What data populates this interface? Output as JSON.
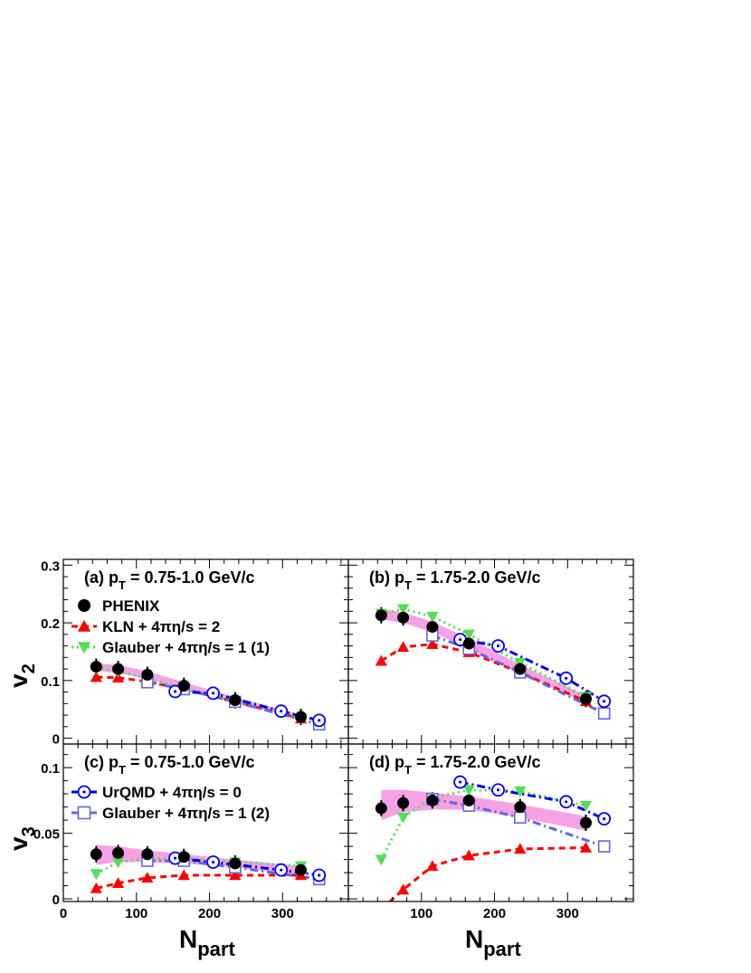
{
  "chart_data": [
    {
      "panel": "a",
      "type": "scatter",
      "title": "(a) p_T = 0.75-1.0 GeV/c",
      "title_parts": {
        "prefix": "(a) p",
        "sub": "T",
        "suffix": " = 0.75-1.0 GeV/c"
      },
      "observable": "v2",
      "xlim": [
        0,
        390
      ],
      "ylim": [
        -0.01,
        0.31
      ],
      "band": {
        "name": "PHENIX systematic",
        "color": "#ee44cc",
        "x": [
          45,
          75,
          115,
          165,
          235,
          325
        ],
        "lo": [
          0.117,
          0.113,
          0.103,
          0.084,
          0.062,
          0.034
        ],
        "hi": [
          0.13,
          0.127,
          0.116,
          0.097,
          0.071,
          0.041
        ]
      },
      "series": [
        {
          "name": "PHENIX",
          "key": "phenix",
          "x": [
            45,
            75,
            115,
            165,
            235,
            325
          ],
          "y": [
            0.124,
            0.12,
            0.11,
            0.091,
            0.066,
            0.037
          ]
        },
        {
          "name": "KLN + 4πη/s = 2",
          "key": "kln",
          "x": [
            45,
            75,
            115,
            165,
            235,
            325
          ],
          "y": [
            0.106,
            0.105,
            0.098,
            0.085,
            0.063,
            0.034
          ]
        },
        {
          "name": "Glauber + 4πη/s = 1 (1)",
          "key": "glauber1",
          "x": [
            45,
            75,
            115,
            165,
            235,
            325
          ],
          "y": [
            0.122,
            0.116,
            0.104,
            0.086,
            0.064,
            0.035
          ]
        },
        {
          "name": "UrQMD + 4πη/s = 0",
          "key": "urqmd",
          "x": [
            153,
            205,
            298,
            350
          ],
          "y": [
            0.081,
            0.078,
            0.047,
            0.031
          ]
        },
        {
          "name": "Glauber + 4πη/s = 1 (2)",
          "key": "glauber2",
          "x": [
            115,
            165,
            235,
            350
          ],
          "y": [
            0.097,
            0.085,
            0.063,
            0.024
          ]
        }
      ]
    },
    {
      "panel": "b",
      "type": "scatter",
      "title": "(b) p_T = 1.75-2.0 GeV/c",
      "title_parts": {
        "prefix": "(b) p",
        "sub": "T",
        "suffix": " = 1.75-2.0 GeV/c"
      },
      "observable": "v2",
      "xlim": [
        0,
        390
      ],
      "ylim": [
        -0.01,
        0.31
      ],
      "band": {
        "name": "PHENIX systematic",
        "color": "#ee44cc",
        "x": [
          45,
          75,
          115,
          165,
          235,
          325
        ],
        "lo": [
          0.206,
          0.2,
          0.184,
          0.155,
          0.112,
          0.062
        ],
        "hi": [
          0.224,
          0.218,
          0.202,
          0.173,
          0.128,
          0.074
        ]
      },
      "series": [
        {
          "name": "PHENIX",
          "key": "phenix",
          "x": [
            45,
            75,
            115,
            165,
            235,
            325
          ],
          "y": [
            0.213,
            0.209,
            0.193,
            0.164,
            0.12,
            0.068
          ]
        },
        {
          "name": "KLN + 4πη/s = 2",
          "key": "kln",
          "x": [
            45,
            75,
            115,
            165,
            235,
            325
          ],
          "y": [
            0.134,
            0.158,
            0.163,
            0.149,
            0.114,
            0.064
          ]
        },
        {
          "name": "Glauber + 4πη/s = 1 (1)",
          "key": "glauber1",
          "x": [
            45,
            75,
            115,
            165,
            235,
            325
          ],
          "y": [
            0.216,
            0.224,
            0.211,
            0.18,
            0.131,
            0.072
          ]
        },
        {
          "name": "UrQMD + 4πη/s = 0",
          "key": "urqmd",
          "x": [
            153,
            205,
            298,
            350
          ],
          "y": [
            0.171,
            0.16,
            0.104,
            0.064
          ]
        },
        {
          "name": "Glauber + 4πη/s = 1 (2)",
          "key": "glauber2",
          "x": [
            115,
            165,
            235,
            350
          ],
          "y": [
            0.178,
            0.155,
            0.114,
            0.043
          ]
        }
      ]
    },
    {
      "panel": "c",
      "type": "scatter",
      "title": "(c) p_T = 0.75-1.0 GeV/c",
      "title_parts": {
        "prefix": "(c) p",
        "sub": "T",
        "suffix": " = 0.75-1.0 GeV/c"
      },
      "observable": "v3",
      "xlim": [
        0,
        390
      ],
      "ylim": [
        -0.002,
        0.118
      ],
      "band": {
        "name": "PHENIX systematic",
        "color": "#ee44cc",
        "x": [
          45,
          75,
          115,
          165,
          235,
          325
        ],
        "lo": [
          0.026,
          0.028,
          0.028,
          0.027,
          0.024,
          0.018
        ],
        "hi": [
          0.041,
          0.04,
          0.037,
          0.034,
          0.03,
          0.025
        ]
      },
      "series": [
        {
          "name": "PHENIX",
          "key": "phenix",
          "x": [
            45,
            75,
            115,
            165,
            235,
            325
          ],
          "y": [
            0.034,
            0.035,
            0.034,
            0.032,
            0.027,
            0.022
          ]
        },
        {
          "name": "KLN + 4πη/s = 2",
          "key": "kln",
          "x": [
            45,
            75,
            115,
            165,
            235,
            325
          ],
          "y": [
            0.008,
            0.012,
            0.016,
            0.018,
            0.018,
            0.018
          ]
        },
        {
          "name": "Glauber + 4πη/s = 1 (1)",
          "key": "glauber1",
          "x": [
            45,
            75,
            115,
            165,
            235,
            325
          ],
          "y": [
            0.019,
            0.028,
            0.031,
            0.031,
            0.028,
            0.025
          ]
        },
        {
          "name": "UrQMD + 4πη/s = 0",
          "key": "urqmd",
          "x": [
            153,
            205,
            298,
            350
          ],
          "y": [
            0.031,
            0.028,
            0.022,
            0.018
          ]
        },
        {
          "name": "Glauber + 4πη/s = 1 (2)",
          "key": "glauber2",
          "x": [
            115,
            165,
            235,
            350
          ],
          "y": [
            0.029,
            0.029,
            0.024,
            0.015
          ]
        }
      ]
    },
    {
      "panel": "d",
      "type": "scatter",
      "title": "(d) p_T = 1.75-2.0 GeV/c",
      "title_parts": {
        "prefix": "(d) p",
        "sub": "T",
        "suffix": " = 1.75-2.0 GeV/c"
      },
      "observable": "v3",
      "xlim": [
        0,
        390
      ],
      "ylim": [
        -0.002,
        0.118
      ],
      "band": {
        "name": "PHENIX systematic",
        "color": "#ee44cc",
        "x": [
          45,
          75,
          115,
          165,
          235,
          325
        ],
        "lo": [
          0.06,
          0.066,
          0.068,
          0.068,
          0.062,
          0.052
        ],
        "hi": [
          0.083,
          0.083,
          0.081,
          0.078,
          0.072,
          0.063
        ]
      },
      "series": [
        {
          "name": "PHENIX",
          "key": "phenix",
          "x": [
            45,
            75,
            115,
            165,
            235,
            325
          ],
          "y": [
            0.069,
            0.073,
            0.075,
            0.075,
            0.07,
            0.058
          ]
        },
        {
          "name": "KLN + 4πη/s = 2",
          "key": "kln",
          "x": [
            45,
            75,
            115,
            165,
            235,
            325
          ],
          "y": [
            -0.008,
            0.007,
            0.025,
            0.033,
            0.038,
            0.039
          ]
        },
        {
          "name": "Glauber + 4πη/s = 1 (1)",
          "key": "glauber1",
          "x": [
            45,
            75,
            115,
            165,
            235,
            325
          ],
          "y": [
            0.03,
            0.062,
            0.077,
            0.083,
            0.082,
            0.071
          ]
        },
        {
          "name": "UrQMD + 4πη/s = 0",
          "key": "urqmd",
          "x": [
            153,
            205,
            298,
            350
          ],
          "y": [
            0.089,
            0.083,
            0.074,
            0.061
          ]
        },
        {
          "name": "Glauber + 4πη/s = 1 (2)",
          "key": "glauber2",
          "x": [
            115,
            165,
            235,
            350
          ],
          "y": [
            0.076,
            0.071,
            0.062,
            0.04
          ]
        }
      ]
    }
  ],
  "axes": {
    "x_label_main": "N",
    "x_label_sub": "part",
    "x_ticks": [
      0,
      100,
      200,
      300
    ],
    "x_tick_labels": [
      "0",
      "100",
      "200",
      "300"
    ],
    "y_top_label_main": "v",
    "y_top_label_sub": "2",
    "y_top_ticks": [
      0,
      0.1,
      0.2,
      0.3
    ],
    "y_top_tick_labels": [
      "0",
      "0.1",
      "0.2",
      "0.3"
    ],
    "y_bottom_label_main": "v",
    "y_bottom_label_sub": "3",
    "y_bottom_ticks": [
      0,
      0.05,
      0.1
    ],
    "y_bottom_tick_labels": [
      "0",
      "0.05",
      "0.1"
    ]
  },
  "legend_top": [
    {
      "key": "phenix",
      "label": "PHENIX"
    },
    {
      "key": "kln",
      "label": "KLN + 4πη/s = 2"
    },
    {
      "key": "glauber1",
      "label": "Glauber + 4πη/s = 1 (1)"
    }
  ],
  "legend_bottom": [
    {
      "key": "urqmd",
      "label": "UrQMD + 4πη/s = 0"
    },
    {
      "key": "glauber2",
      "label": "Glauber + 4πη/s = 1 (2)"
    }
  ],
  "styles": {
    "phenix": {
      "color": "#000000",
      "marker": "circle-filled"
    },
    "kln": {
      "color": "#ff0000",
      "marker": "triangle-up-filled",
      "line": "dashed"
    },
    "glauber1": {
      "color": "#55dd55",
      "marker": "triangle-down-filled",
      "line": "dotted"
    },
    "urqmd": {
      "color": "#0000ee",
      "marker": "circle-open-dot",
      "line": "dash-dot"
    },
    "glauber2": {
      "color": "#6666dd",
      "marker": "square-open",
      "line": "dash-dot"
    }
  }
}
